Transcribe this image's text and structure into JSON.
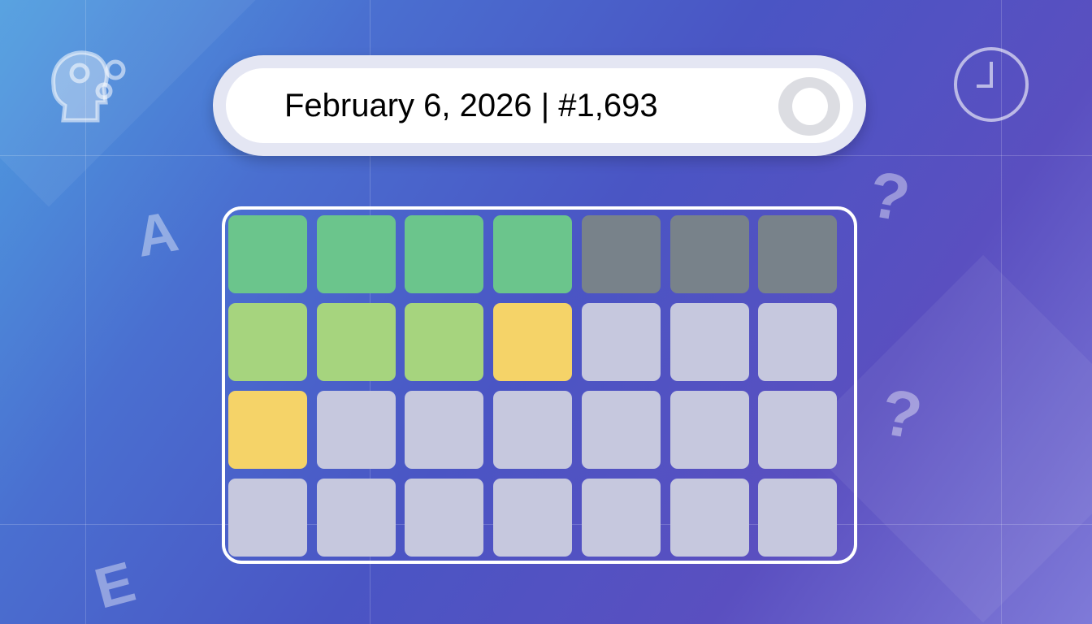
{
  "header": {
    "title": "February 6, 2026 | #1,693"
  },
  "decorations": {
    "letters": [
      "A",
      "E"
    ],
    "question_marks": [
      "?",
      "?"
    ],
    "icons": [
      "brain-gears-icon",
      "clock-icon"
    ]
  },
  "colors": {
    "correct": "#6bc58c",
    "absent": "#78828a",
    "partial_green": "#a6d47e",
    "present": "#f5d368",
    "empty": "#c6c8de"
  },
  "board": {
    "rows": [
      [
        "correct",
        "correct",
        "correct",
        "correct",
        "absent",
        "absent",
        "absent"
      ],
      [
        "partial_green",
        "partial_green",
        "partial_green",
        "present",
        "empty",
        "empty",
        "empty"
      ],
      [
        "present",
        "empty",
        "empty",
        "empty",
        "empty",
        "empty",
        "empty"
      ],
      [
        "empty",
        "empty",
        "empty",
        "empty",
        "empty",
        "empty",
        "empty"
      ]
    ]
  }
}
